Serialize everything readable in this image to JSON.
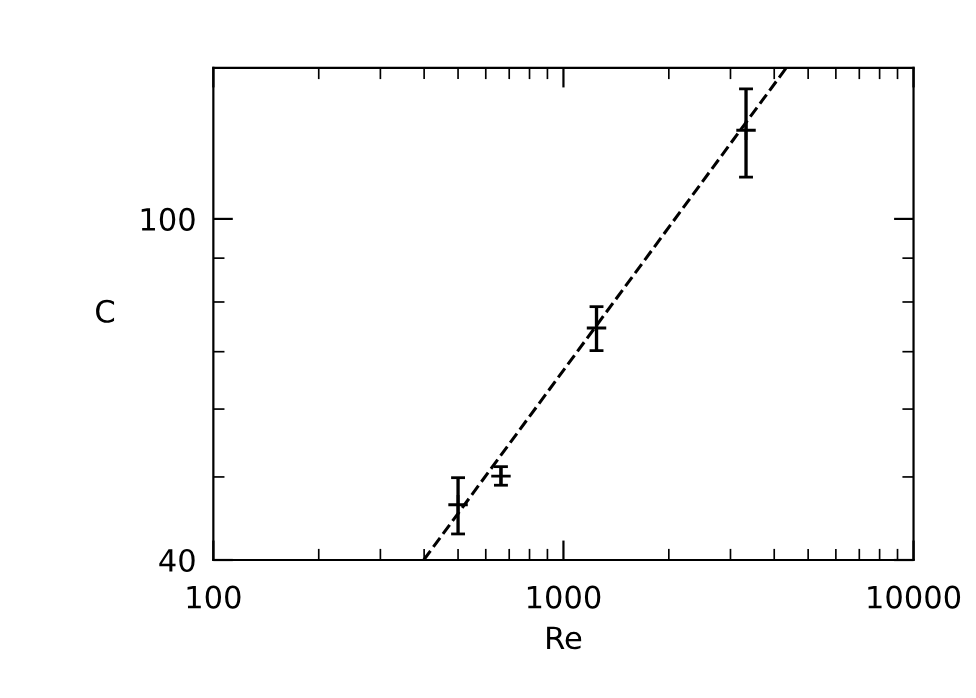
{
  "chart_data": {
    "type": "scatter",
    "xlabel": "Re",
    "ylabel": "C",
    "log": "xy",
    "xlim": [
      100,
      10000
    ],
    "xticks": [
      100,
      1000,
      10000
    ],
    "ylim": [
      40,
      150
    ],
    "yticks": [
      40,
      100
    ],
    "series": [
      {
        "color": "#000000",
        "marker": "cross",
        "x": [
          500,
          663,
          1243,
          3323
        ],
        "values": [
          46.4,
          50.1,
          74.6,
          126.9
        ],
        "errors": [
          [
            42.9,
            49.9
          ],
          [
            48.9,
            51.4
          ],
          [
            70.2,
            79.0
          ],
          [
            111.9,
            141.8
          ]
        ]
      },
      {
        "type": "line",
        "color": "#000000",
        "line_style": "dashed",
        "marker": "none",
        "x": [
          399,
          4327
        ],
        "values": [
          40,
          150
        ]
      }
    ],
    "grid": false,
    "legend": false
  }
}
